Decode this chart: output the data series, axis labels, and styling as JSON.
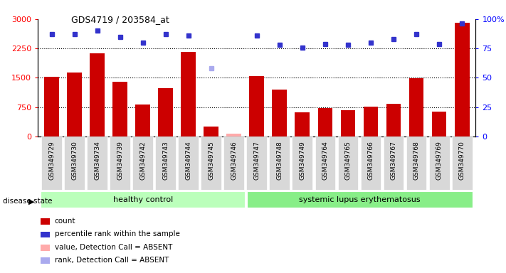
{
  "title": "GDS4719 / 203584_at",
  "samples": [
    "GSM349729",
    "GSM349730",
    "GSM349734",
    "GSM349739",
    "GSM349742",
    "GSM349743",
    "GSM349744",
    "GSM349745",
    "GSM349746",
    "GSM349747",
    "GSM349748",
    "GSM349749",
    "GSM349764",
    "GSM349765",
    "GSM349766",
    "GSM349767",
    "GSM349768",
    "GSM349769",
    "GSM349770"
  ],
  "counts": [
    1530,
    1640,
    2120,
    1390,
    820,
    1240,
    2160,
    250,
    80,
    1540,
    1200,
    610,
    730,
    680,
    770,
    830,
    1490,
    640,
    2900
  ],
  "percentile_ranks": [
    87,
    87,
    90,
    85,
    80,
    87,
    86,
    58,
    null,
    86,
    78,
    76,
    79,
    78,
    80,
    83,
    87,
    79,
    96
  ],
  "absent_value_idx": [
    8
  ],
  "absent_rank_idx": [
    7
  ],
  "healthy_count": 9,
  "disease_label": "healthy control",
  "disease2_label": "systemic lupus erythematosus",
  "disease_state_label": "disease state",
  "ylim_left": [
    0,
    3000
  ],
  "ylim_right": [
    0,
    100
  ],
  "yticks_left": [
    0,
    750,
    1500,
    2250,
    3000
  ],
  "yticks_right": [
    0,
    25,
    50,
    75,
    100
  ],
  "bar_color": "#cc0000",
  "blue_color": "#3333cc",
  "absent_bar_color": "#ffaaaa",
  "absent_rank_color": "#aaaaee",
  "healthy_bg": "#bbffbb",
  "disease_bg": "#88ee88",
  "legend_items": [
    {
      "label": "count",
      "color": "#cc0000",
      "marker": "s"
    },
    {
      "label": "percentile rank within the sample",
      "color": "#3333cc",
      "marker": "s"
    },
    {
      "label": "value, Detection Call = ABSENT",
      "color": "#ffaaaa",
      "marker": "s"
    },
    {
      "label": "rank, Detection Call = ABSENT",
      "color": "#aaaaee",
      "marker": "s"
    }
  ]
}
